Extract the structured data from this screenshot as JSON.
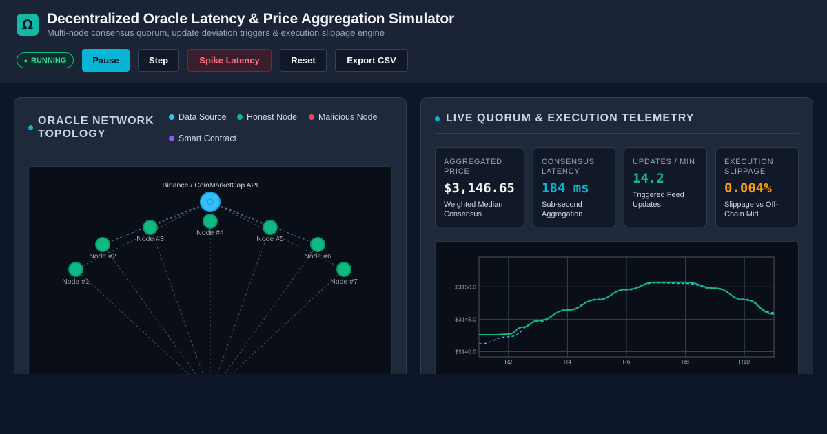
{
  "header": {
    "logo_glyph": "Ω",
    "title": "Decentralized Oracle Latency & Price Aggregation Simulator",
    "subtitle": "Multi-node consensus quorum, update deviation triggers & execution slippage engine"
  },
  "controls": {
    "status": "RUNNING",
    "status_icon": "●",
    "pause": "Pause",
    "step": "Step",
    "spike": "Spike Latency",
    "reset": "Reset",
    "export": "Export CSV"
  },
  "topology_panel": {
    "title_line1": "ORACLE NETWORK",
    "title_line2": "TOPOLOGY",
    "legend": [
      {
        "label": "Data Source",
        "color": "#38bdf8"
      },
      {
        "label": "Honest Node",
        "color": "#10b981"
      },
      {
        "label": "Malicious Node",
        "color": "#f43f5e"
      },
      {
        "label": "Smart Contract",
        "color": "#8b5cf6"
      }
    ],
    "source_label": "Binance / CoinMarketCap API",
    "nodes": [
      "Node #1",
      "Node #2",
      "Node #3",
      "Node #4",
      "Node #5",
      "Node #6",
      "Node #7"
    ]
  },
  "telemetry_panel": {
    "title": "LIVE QUORUM & EXECUTION TELEMETRY",
    "metrics": [
      {
        "label_line1": "AGGREGATED",
        "label_line2": "PRICE",
        "value": "$3,146.65",
        "color": "#f3f4f6",
        "sub_line1": "Weighted Median",
        "sub_line2": "Consensus"
      },
      {
        "label_line1": "CONSENSUS",
        "label_line2": "LATENCY",
        "value": "184 ms",
        "color": "#06b6d4",
        "sub_line1": "Sub-second",
        "sub_line2": "Aggregation"
      },
      {
        "label_line1": "UPDATES / MIN",
        "label_line2": "",
        "value": "14.2",
        "color": "#10b981",
        "sub_line1": "Triggered Feed",
        "sub_line2": "Updates"
      },
      {
        "label_line1": "EXECUTION",
        "label_line2": "SLIPPAGE",
        "value": "0.004%",
        "color": "#f59e0b",
        "sub_line1": "Slippage vs Off-",
        "sub_line2": "Chain Mid"
      }
    ]
  },
  "chart_data": {
    "type": "line",
    "x": [
      "R1",
      "R2",
      "R3",
      "R4",
      "R5",
      "R6",
      "R7",
      "R8",
      "R9",
      "R10",
      "R11"
    ],
    "xticks": [
      "R2",
      "R4",
      "R6",
      "R8",
      "R10"
    ],
    "yticks": [
      "$3140.0",
      "$3145.0",
      "$3150.0"
    ],
    "ylim": [
      3139.2,
      3154.6
    ],
    "series": [
      {
        "color": "#10b981",
        "style": "solid",
        "points": [
          [
            1,
            3142.6
          ],
          [
            1.5,
            3142.6
          ],
          [
            2,
            3142.7
          ],
          [
            2.5,
            3143.8
          ],
          [
            3,
            3144.8
          ],
          [
            4,
            3146.4
          ],
          [
            5,
            3148.0
          ],
          [
            6,
            3149.6
          ],
          [
            7,
            3150.7
          ],
          [
            8,
            3150.7
          ],
          [
            9,
            3149.8
          ],
          [
            10,
            3148.0
          ],
          [
            11,
            3145.8
          ]
        ]
      },
      {
        "color": "#38bdf8",
        "style": "dashed",
        "points": [
          [
            1,
            3141.2
          ],
          [
            2,
            3142.3
          ],
          [
            3,
            3144.6
          ],
          [
            4,
            3146.5
          ],
          [
            5,
            3148.1
          ],
          [
            6,
            3149.5
          ],
          [
            7,
            3150.6
          ],
          [
            8,
            3150.5
          ],
          [
            9,
            3149.7
          ],
          [
            10,
            3148.1
          ],
          [
            11,
            3146.0
          ]
        ]
      }
    ],
    "grid": true
  }
}
